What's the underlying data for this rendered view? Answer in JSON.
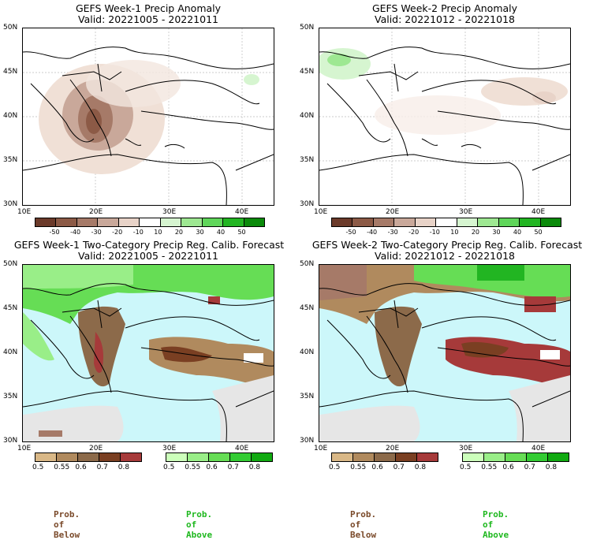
{
  "panels": [
    {
      "title": "GEFS Week-1 Precip Anomaly",
      "valid": "Valid: 20221005 - 20221011"
    },
    {
      "title": "GEFS Week-2 Precip Anomaly",
      "valid": "Valid: 20221012 - 20221018"
    },
    {
      "title": "GEFS Week-1 Two-Category Precip Reg. Calib. Forecast",
      "valid": "Valid: 20221005 - 20221011"
    },
    {
      "title": "GEFS Week-2 Two-Category Precip Reg. Calib. Forecast",
      "valid": "Valid: 20221012 - 20221018"
    }
  ],
  "lat_labels": [
    "50N",
    "45N",
    "40N",
    "35N",
    "30N"
  ],
  "lon_labels": [
    "10E",
    "20E",
    "30E",
    "40E"
  ],
  "anomaly_ticks": [
    "-50",
    "-40",
    "-30",
    "-20",
    "-10",
    "10",
    "20",
    "30",
    "40",
    "50"
  ],
  "anomaly_colors": [
    "#6b3a2a",
    "#8c5a46",
    "#a67a68",
    "#c9a89a",
    "#e8d3c8",
    "#ffffff",
    "#d6f5d0",
    "#9ee892",
    "#5fd65a",
    "#22b522",
    "#0a8a0a"
  ],
  "prob_ticks": [
    "0.5",
    "0.55",
    "0.6",
    "0.7",
    "0.8"
  ],
  "below_colors": [
    "#d9b887",
    "#b08a5e",
    "#8c6a4a",
    "#7a3f22",
    "#a63a3a"
  ],
  "above_colors": [
    "#ccffbb",
    "#99ee88",
    "#66dd55",
    "#33cc33",
    "#11aa11"
  ],
  "legend": {
    "below": "Prob. of Below",
    "above": "Prob. of Above"
  },
  "colors": {
    "ocean": "#ccf7fa",
    "nodata": "#e6e6e6",
    "below_text": "#7a4a2a",
    "above_text": "#1fb81f"
  }
}
